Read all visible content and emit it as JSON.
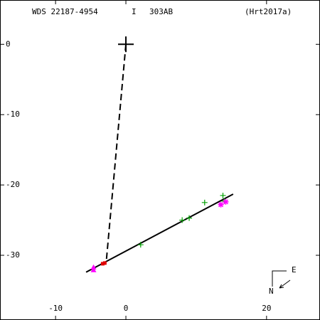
{
  "chart_data": {
    "type": "scatter",
    "title": "WDS 22187-4954",
    "subtitle_parts": [
      "I",
      "303AB"
    ],
    "reference": "(Hrt2017a)",
    "xlim": [
      -17.9,
      27.6
    ],
    "ylim": [
      -39.2,
      6.3
    ],
    "xticks": [
      -10,
      0,
      20
    ],
    "yticks": [
      0,
      -10,
      -20,
      -30
    ],
    "series": [
      {
        "marker": "plus",
        "color": "#00a000",
        "x": [
          2.1,
          8.0,
          9.0,
          11.2,
          13.8,
          14.0
        ],
        "y": [
          -28.5,
          -25.0,
          -24.7,
          -22.5,
          -21.5,
          -22.3
        ]
      },
      {
        "marker": "star",
        "color": "#ff00ff",
        "x": [
          13.5,
          14.2
        ],
        "y": [
          -22.8,
          -22.4
        ]
      },
      {
        "marker": "dot",
        "color": "#e00000",
        "x": [
          -3.3,
          -3.0
        ],
        "y": [
          -31.2,
          -31.1
        ]
      },
      {
        "marker": "triangle",
        "color": "#ff00ff",
        "x": [
          -4.6,
          -4.6
        ],
        "y": [
          -31.7,
          -32.1
        ]
      }
    ],
    "fit_line": {
      "x": [
        -5.66,
        15.25
      ],
      "y": [
        -32.4,
        -21.3
      ]
    },
    "separation_line": {
      "x": [
        0,
        -2.8
      ],
      "y": [
        0,
        -31.0
      ]
    },
    "primary": {
      "x": 0,
      "y": 0
    },
    "compass": {
      "east": "E",
      "north": "N"
    }
  }
}
